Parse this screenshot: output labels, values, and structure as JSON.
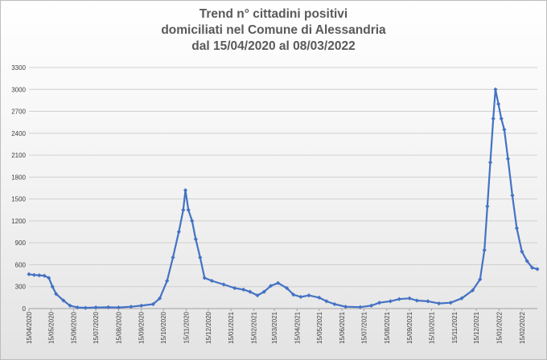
{
  "chart_data": {
    "type": "line",
    "title": [
      "Trend n° cittadini positivi",
      "domiciliati nel Comune di Alessandria",
      "dal 15/04/2020 al 08/03/2022"
    ],
    "xlabel": "",
    "ylabel": "",
    "ylim": [
      0,
      3300
    ],
    "yticks": [
      0,
      300,
      600,
      900,
      1200,
      1500,
      1800,
      2100,
      2400,
      2700,
      3000,
      3300
    ],
    "xlim": [
      "2020-04-15",
      "2022-03-08"
    ],
    "xticks": [
      "15/04/2020",
      "15/05/2020",
      "15/06/2020",
      "15/07/2020",
      "15/08/2020",
      "15/09/2020",
      "15/10/2020",
      "15/11/2020",
      "15/12/2020",
      "15/01/2021",
      "15/02/2021",
      "15/03/2021",
      "15/04/2021",
      "15/05/2021",
      "15/06/2021",
      "15/07/2021",
      "15/08/2021",
      "15/09/2021",
      "15/10/2021",
      "15/11/2021",
      "15/12/2021",
      "15/01/2022",
      "15/02/2022"
    ],
    "grid": true,
    "legend": "none",
    "color": "#4472C4",
    "series": [
      {
        "marker": "diamond",
        "points": [
          [
            "2020-04-15",
            470
          ],
          [
            "2020-04-22",
            460
          ],
          [
            "2020-04-29",
            455
          ],
          [
            "2020-05-06",
            450
          ],
          [
            "2020-05-12",
            420
          ],
          [
            "2020-05-17",
            300
          ],
          [
            "2020-05-22",
            200
          ],
          [
            "2020-06-01",
            110
          ],
          [
            "2020-06-10",
            40
          ],
          [
            "2020-06-20",
            15
          ],
          [
            "2020-07-01",
            10
          ],
          [
            "2020-07-15",
            15
          ],
          [
            "2020-08-01",
            18
          ],
          [
            "2020-08-15",
            15
          ],
          [
            "2020-09-01",
            25
          ],
          [
            "2020-09-15",
            40
          ],
          [
            "2020-10-01",
            60
          ],
          [
            "2020-10-10",
            140
          ],
          [
            "2020-10-20",
            380
          ],
          [
            "2020-10-28",
            700
          ],
          [
            "2020-11-05",
            1050
          ],
          [
            "2020-11-11",
            1350
          ],
          [
            "2020-11-14",
            1620
          ],
          [
            "2020-11-18",
            1350
          ],
          [
            "2020-11-23",
            1200
          ],
          [
            "2020-11-28",
            950
          ],
          [
            "2020-12-04",
            700
          ],
          [
            "2020-12-10",
            420
          ],
          [
            "2020-12-20",
            380
          ],
          [
            "2021-01-05",
            330
          ],
          [
            "2021-01-20",
            280
          ],
          [
            "2021-02-01",
            260
          ],
          [
            "2021-02-10",
            230
          ],
          [
            "2021-02-20",
            180
          ],
          [
            "2021-03-01",
            230
          ],
          [
            "2021-03-10",
            310
          ],
          [
            "2021-03-20",
            350
          ],
          [
            "2021-04-01",
            280
          ],
          [
            "2021-04-10",
            190
          ],
          [
            "2021-04-20",
            160
          ],
          [
            "2021-05-01",
            180
          ],
          [
            "2021-05-15",
            150
          ],
          [
            "2021-05-25",
            100
          ],
          [
            "2021-06-05",
            60
          ],
          [
            "2021-06-20",
            25
          ],
          [
            "2021-07-10",
            20
          ],
          [
            "2021-07-25",
            40
          ],
          [
            "2021-08-05",
            80
          ],
          [
            "2021-08-20",
            100
          ],
          [
            "2021-09-01",
            130
          ],
          [
            "2021-09-15",
            140
          ],
          [
            "2021-09-25",
            110
          ],
          [
            "2021-10-10",
            100
          ],
          [
            "2021-10-25",
            70
          ],
          [
            "2021-11-10",
            80
          ],
          [
            "2021-11-25",
            140
          ],
          [
            "2021-12-10",
            250
          ],
          [
            "2021-12-20",
            400
          ],
          [
            "2021-12-26",
            800
          ],
          [
            "2021-12-30",
            1400
          ],
          [
            "2022-01-03",
            2000
          ],
          [
            "2022-01-07",
            2600
          ],
          [
            "2022-01-10",
            3000
          ],
          [
            "2022-01-14",
            2800
          ],
          [
            "2022-01-18",
            2600
          ],
          [
            "2022-01-22",
            2450
          ],
          [
            "2022-01-27",
            2050
          ],
          [
            "2022-02-02",
            1550
          ],
          [
            "2022-02-08",
            1100
          ],
          [
            "2022-02-15",
            780
          ],
          [
            "2022-02-22",
            650
          ],
          [
            "2022-03-01",
            560
          ],
          [
            "2022-03-08",
            540
          ]
        ]
      }
    ]
  }
}
